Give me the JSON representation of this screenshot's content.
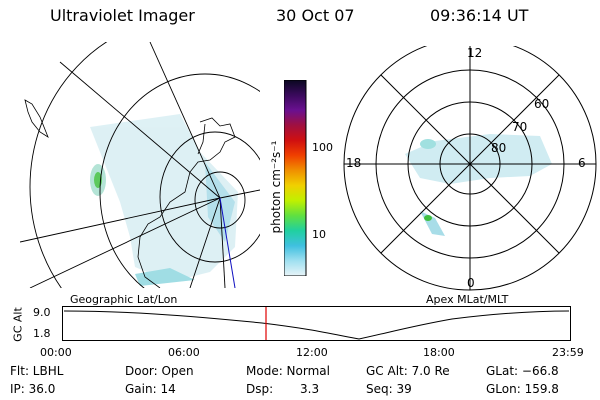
{
  "header": {
    "title": "Ultraviolet Imager",
    "date": "30 Oct 07",
    "time": "09:36:14 UT"
  },
  "colorbar": {
    "unit_label": "photon cm⁻²s⁻¹",
    "ticks": [
      "100",
      "10"
    ],
    "colors": [
      "#0a0820",
      "#3a0a5c",
      "#6a1090",
      "#a01040",
      "#d01010",
      "#f04000",
      "#f09000",
      "#f0d000",
      "#c0f000",
      "#60e040",
      "#20d0a0",
      "#40c0e0",
      "#a0e0f0",
      "#e8f4f8"
    ]
  },
  "polar_plot": {
    "ring_labels": [
      "60",
      "70",
      "80"
    ],
    "mlt_labels": {
      "top": "12",
      "left": "18",
      "right": "6",
      "bottom": "0"
    }
  },
  "map_labels": {
    "left_title": "Geographic Lat/Lon",
    "right_title": "Apex MLat/MLT"
  },
  "altitude_strip": {
    "axis_label": "GC Alt",
    "y_ticks": [
      "9.0",
      "1.8"
    ],
    "x_ticks": [
      "00:00",
      "06:00",
      "12:00",
      "18:00",
      "23:59"
    ],
    "curve_color": "#000000",
    "marker_color": "#e00000",
    "marker_time_fraction": 0.4
  },
  "status": {
    "filter": "Flt: LBHL",
    "ip": "IP: 36.0",
    "door": "Door: Open",
    "gain": "Gain: 14",
    "mode": "Mode: Normal",
    "dsp_label": "Dsp:",
    "dsp_value": "3.3",
    "gc_alt": "GC Alt: 7.0 Re",
    "seq": "Seq: 39",
    "glat": "GLat: −66.8",
    "glon": "GLon: 159.8"
  }
}
